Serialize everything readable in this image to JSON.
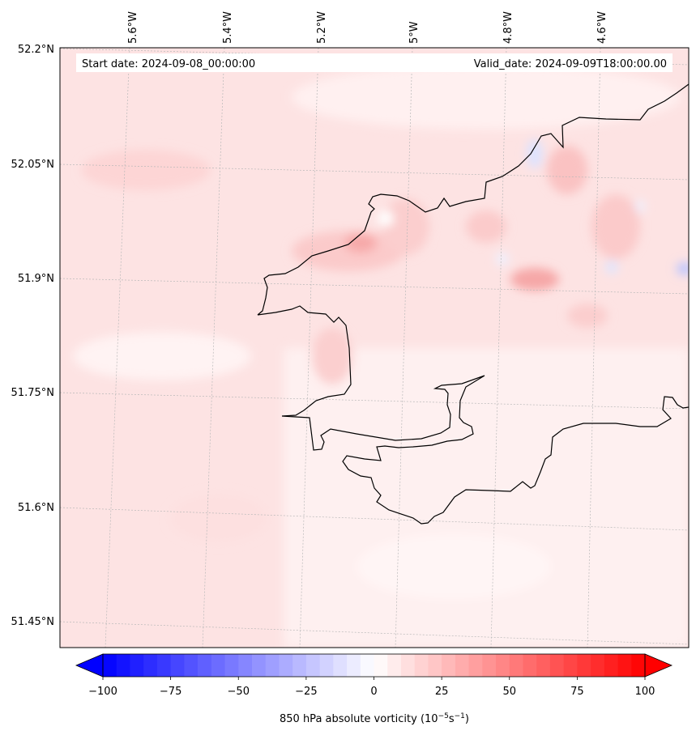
{
  "header": {
    "start_date": "Start date: 2024-09-08_00:00:00",
    "valid_date": "Valid_date: 2024-09-09T18:00:00.00"
  },
  "map": {
    "lon_labels": [
      "5.6°W",
      "5.4°W",
      "5.2°W",
      "5°W",
      "4.8°W",
      "4.6°W"
    ],
    "lat_labels": [
      "52.2°N",
      "52.05°N",
      "51.9°N",
      "51.75°N",
      "51.6°N",
      "51.45°N"
    ],
    "background_color": "#fde2e2",
    "coastline_color": "#000000",
    "gridlines": true
  },
  "colorbar": {
    "label_prefix": "850 hPa absolute vorticity (10",
    "label_exp1": "−5",
    "label_mid": "s",
    "label_exp2": "−1",
    "label_suffix": ")",
    "tick_labels": [
      "−100",
      "−75",
      "−50",
      "−25",
      "0",
      "25",
      "50",
      "75",
      "100"
    ],
    "range": [
      -100,
      100
    ],
    "extend": "both",
    "colormap": "bwr"
  }
}
